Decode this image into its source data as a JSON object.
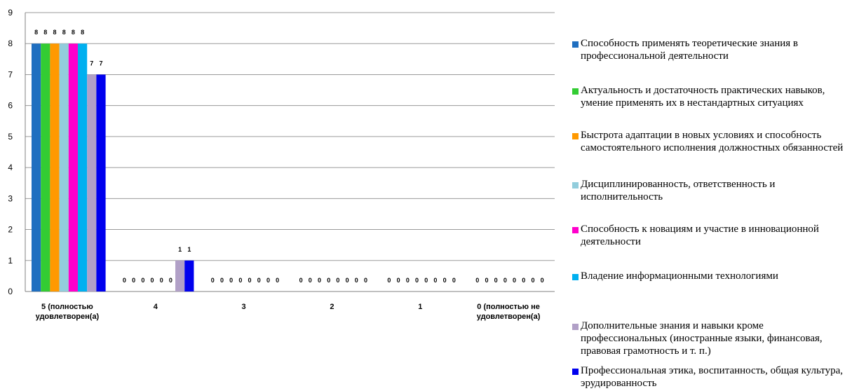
{
  "chart_data": {
    "type": "bar",
    "categories": [
      "5 (полностью удовлетворен(а)",
      "4",
      "3",
      "2",
      "1",
      "0 (полностью не удовлетворен(а)"
    ],
    "category_lines": [
      [
        "5 (полностью",
        "удовлетворен(а)"
      ],
      [
        "4"
      ],
      [
        "3"
      ],
      [
        "2"
      ],
      [
        "1"
      ],
      [
        "0 (полностью не",
        "удовлетворен(а)"
      ]
    ],
    "series": [
      {
        "name": "Способность применять теоретические знания в профессиональной деятельности",
        "color": "#1f6fc0",
        "values": [
          8,
          0,
          0,
          0,
          0,
          0
        ]
      },
      {
        "name": "Актуальность и достаточность практических навыков, умение применять их в нестандартных ситуациях",
        "color": "#33cc33",
        "values": [
          8,
          0,
          0,
          0,
          0,
          0
        ]
      },
      {
        "name": "Быстрота адаптации в новых условиях и способность самостоятельного исполнения должностных обязанностей",
        "color": "#ff9900",
        "values": [
          8,
          0,
          0,
          0,
          0,
          0
        ]
      },
      {
        "name": "Дисциплинированность, ответственность и исполнительность",
        "color": "#92cddc",
        "values": [
          8,
          0,
          0,
          0,
          0,
          0
        ]
      },
      {
        "name": "Способность к новациям и участие в инновационной деятельности",
        "color": "#ff00cc",
        "values": [
          8,
          0,
          0,
          0,
          0,
          0
        ]
      },
      {
        "name": "Владение информационными технологиями",
        "color": "#00b0f0",
        "values": [
          8,
          0,
          0,
          0,
          0,
          0
        ]
      },
      {
        "name": "Дополнительные знания и навыки кроме профессиональных (иностранные языки, финансовая, правовая грамотность и т. п.)",
        "color": "#b1a0c7",
        "values": [
          7,
          1,
          0,
          0,
          0,
          0
        ]
      },
      {
        "name": "Профессиональная этика, воспитанность, общая культура, эрудированность",
        "color": "#0000ee",
        "values": [
          7,
          1,
          0,
          0,
          0,
          0
        ]
      }
    ],
    "ylim": [
      0,
      9
    ],
    "yticks": [
      0,
      1,
      2,
      3,
      4,
      5,
      6,
      7,
      8,
      9
    ],
    "grid": true,
    "legend": "right",
    "data_labels": true,
    "title": "",
    "xlabel": "",
    "ylabel": ""
  }
}
